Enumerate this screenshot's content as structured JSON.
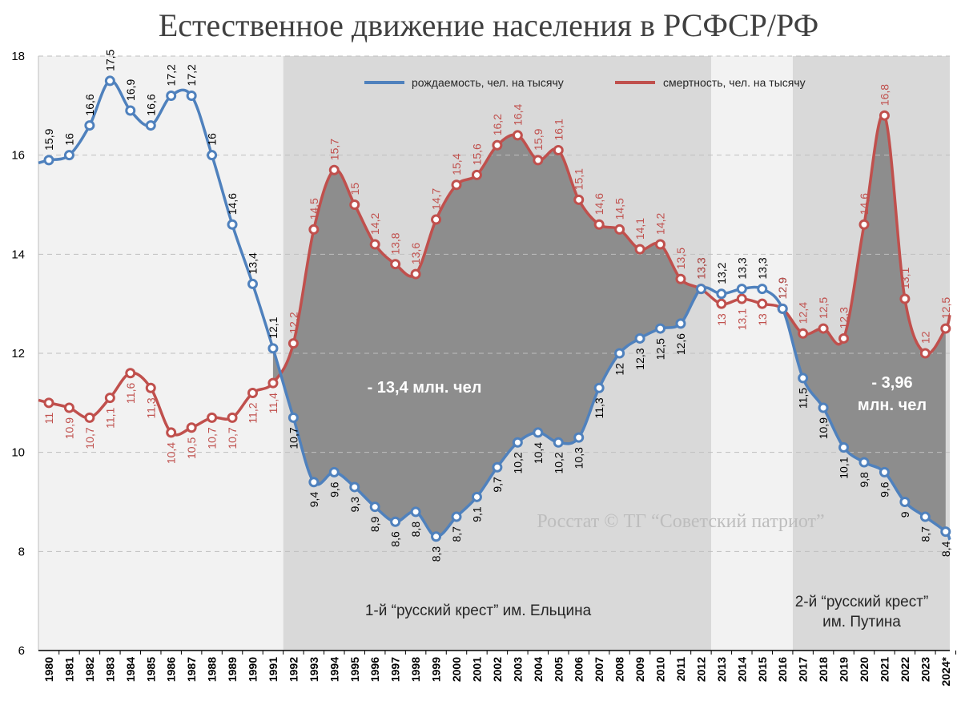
{
  "chart_data": {
    "type": "line",
    "title": "Естественное движение населения в РСФСР/РФ",
    "x": [
      "1980",
      "1981",
      "1982",
      "1983",
      "1984",
      "1985",
      "1986",
      "1987",
      "1988",
      "1989",
      "1990",
      "1991",
      "1992",
      "1993",
      "1994",
      "1995",
      "1996",
      "1997",
      "1998",
      "1999",
      "2000",
      "2001",
      "2002",
      "2003",
      "2004",
      "2005",
      "2006",
      "2007",
      "2008",
      "2009",
      "2010",
      "2011",
      "2012",
      "2013",
      "2014",
      "2015",
      "2016",
      "2017",
      "2018",
      "2019",
      "2020",
      "2021",
      "2022",
      "2023",
      "2024*"
    ],
    "series": [
      {
        "name": "рождаемость, чел. на тысячу",
        "color": "#4f81bd",
        "values": [
          15.9,
          16,
          16.6,
          17.5,
          16.9,
          16.6,
          17.2,
          17.2,
          16,
          14.6,
          13.4,
          12.1,
          10.7,
          9.4,
          9.6,
          9.3,
          8.9,
          8.6,
          8.8,
          8.3,
          8.7,
          9.1,
          9.7,
          10.2,
          10.4,
          10.2,
          10.3,
          11.3,
          12,
          12.3,
          12.5,
          12.6,
          13.3,
          13.2,
          13.3,
          13.3,
          12.9,
          11.5,
          10.9,
          10.1,
          9.8,
          9.6,
          9,
          8.7,
          8.4
        ],
        "labels": [
          "15,9",
          "16",
          "16,6",
          "17,5",
          "16,9",
          "16,6",
          "17,2",
          "17,2",
          "16",
          "14,6",
          "13,4",
          "12,1",
          "10,7",
          "9,4",
          "9,6",
          "9,3",
          "8,9",
          "8,6",
          "8,8",
          "8,3",
          "8,7",
          "9,1",
          "9,7",
          "10,2",
          "10,4",
          "10,2",
          "10,3",
          "11,3",
          "12",
          "12,3",
          "12,5",
          "12,6",
          "13,3",
          "13,2",
          "13,3",
          "13,3",
          "12,9",
          "11,5",
          "10,9",
          "10,1",
          "9,8",
          "9,6",
          "9",
          "8,7",
          "8,4"
        ]
      },
      {
        "name": "смертность, чел. на тысячу",
        "color": "#c0504d",
        "values": [
          11,
          10.9,
          10.7,
          11.1,
          11.6,
          11.3,
          10.4,
          10.5,
          10.7,
          10.7,
          11.2,
          11.4,
          12.2,
          14.5,
          15.7,
          15,
          14.2,
          13.8,
          13.6,
          14.7,
          15.4,
          15.6,
          16.2,
          16.4,
          15.9,
          16.1,
          15.1,
          14.6,
          14.5,
          14.1,
          14.2,
          13.5,
          13.3,
          13,
          13.1,
          13,
          12.9,
          12.4,
          12.5,
          12.3,
          14.6,
          16.8,
          13.1,
          12,
          12.5
        ],
        "labels": [
          "11",
          "10,9",
          "10,7",
          "11,1",
          "11,6",
          "11,3",
          "10,4",
          "10,5",
          "10,7",
          "10,7",
          "11,2",
          "11,4",
          "12,2",
          "14,5",
          "15,7",
          "15",
          "14,2",
          "13,8",
          "13,6",
          "14,7",
          "15,4",
          "15,6",
          "16,2",
          "16,4",
          "15,9",
          "16,1",
          "15,1",
          "14,6",
          "14,5",
          "14,1",
          "14,2",
          "13,5",
          "13,3",
          "13",
          "13,1",
          "13",
          "12,9",
          "12,4",
          "12,5",
          "12,3",
          "14,6",
          "16,8",
          "13,1",
          "12",
          "12,5"
        ]
      }
    ],
    "ylim": [
      6,
      18
    ],
    "yticks": [
      6,
      8,
      10,
      12,
      14,
      16,
      18
    ],
    "grid": true,
    "legend": "top",
    "periods": [
      {
        "from": "1992",
        "to": "2012",
        "label": "1-й “русский крест” им. Ельцина"
      },
      {
        "from": "2017",
        "to": "2024*",
        "label_line1": "2-й “русский крест”",
        "label_line2": "им. Путина"
      }
    ],
    "annotations": [
      {
        "text": "- 13,4 млн. чел"
      },
      {
        "text_line1": "- 3,96",
        "text_line2": "млн. чел"
      }
    ],
    "watermark": "Росстат © ТГ “Советский патриот”"
  }
}
